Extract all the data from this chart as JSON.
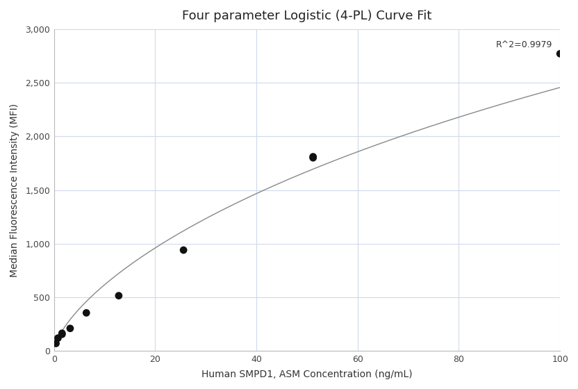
{
  "title": "Four parameter Logistic (4-PL) Curve Fit",
  "xlabel": "Human SMPD1, ASM Concentration (ng/mL)",
  "ylabel": "Median Fluorescence Intensity (MFI)",
  "scatter_x": [
    0.4,
    0.8,
    1.6,
    1.6,
    3.2,
    6.4,
    12.8,
    25.6,
    51.2,
    51.2,
    100
  ],
  "scatter_y": [
    70,
    120,
    155,
    165,
    210,
    355,
    515,
    940,
    1800,
    1810,
    2770
  ],
  "r_squared": "R^2=0.9979",
  "xlim": [
    0,
    100
  ],
  "ylim": [
    0,
    3000
  ],
  "xticks": [
    0,
    20,
    40,
    60,
    80,
    100
  ],
  "yticks": [
    0,
    500,
    1000,
    1500,
    2000,
    2500,
    3000
  ],
  "scatter_color": "#111111",
  "line_color": "#888888",
  "grid_color": "#d0daea",
  "background_color": "#ffffff",
  "title_fontsize": 13,
  "label_fontsize": 10,
  "tick_fontsize": 9,
  "annotation_fontsize": 9,
  "figsize": [
    8.32,
    5.6
  ],
  "dpi": 100
}
